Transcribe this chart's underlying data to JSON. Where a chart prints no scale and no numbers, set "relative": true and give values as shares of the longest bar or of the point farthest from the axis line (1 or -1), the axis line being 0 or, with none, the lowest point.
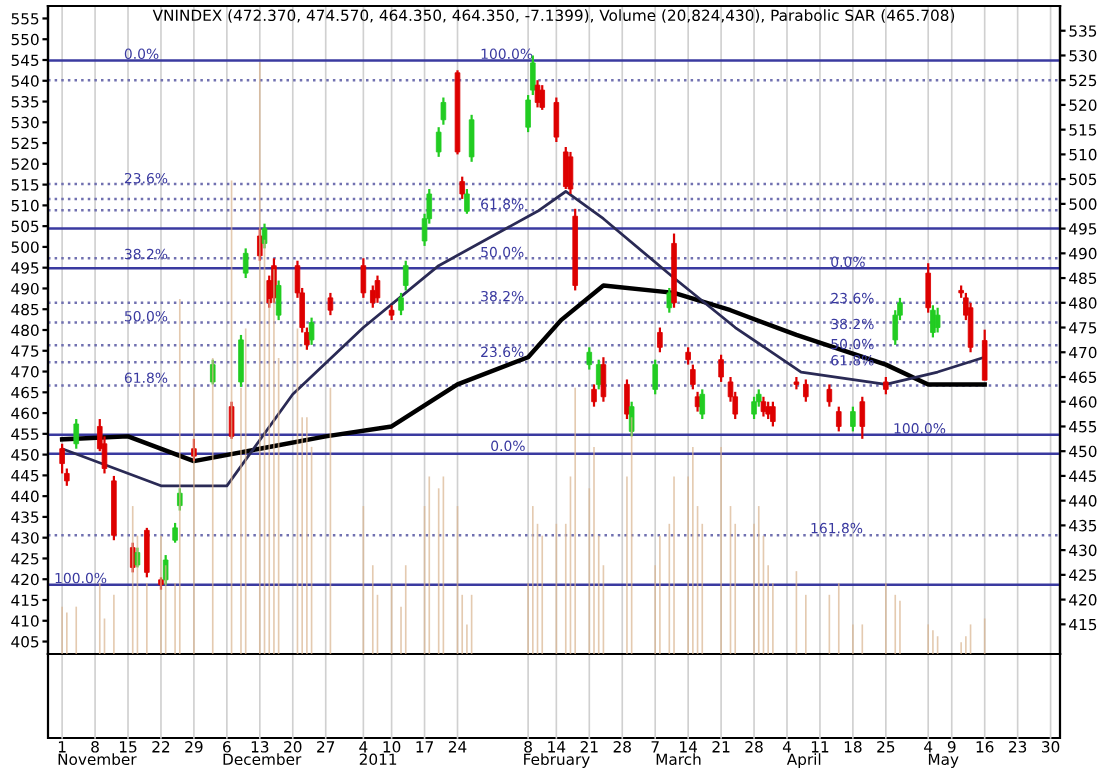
{
  "chart_data": [
    {
      "type": "candlestick",
      "title": "VNINDEX (472.370, 474.570, 464.350, 464.350, -7.1399), Volume (20,824,430), Parabolic SAR (465.708)",
      "xlim": [
        "2010-10-29",
        "2011-06-01"
      ],
      "ylim": [
        402,
        558
      ],
      "yticks": [
        405,
        410,
        415,
        420,
        425,
        430,
        435,
        440,
        445,
        450,
        455,
        460,
        465,
        470,
        475,
        480,
        485,
        490,
        495,
        500,
        505,
        510,
        515,
        520,
        525,
        530,
        535,
        540,
        545,
        550,
        555
      ],
      "y2lim": [
        409,
        540
      ],
      "y2ticks": [
        415,
        420,
        425,
        430,
        435,
        440,
        445,
        450,
        455,
        460,
        465,
        470,
        475,
        480,
        485,
        490,
        495,
        500,
        505,
        510,
        515,
        520,
        525,
        530,
        535
      ],
      "grid": "x",
      "series": [
        {
          "type": "candlestick",
          "axis": "y2",
          "x": [
            "2010-11-01",
            "2010-11-02",
            "2010-11-04",
            "2010-11-09",
            "2010-11-10",
            "2010-11-12",
            "2010-11-16",
            "2010-11-17",
            "2010-11-19",
            "2010-11-22",
            "2010-11-23",
            "2010-11-25",
            "2010-11-26",
            "2010-11-29",
            "2010-12-03",
            "2010-12-07",
            "2010-12-09",
            "2010-12-10",
            "2010-12-13",
            "2010-12-14",
            "2010-12-15",
            "2010-12-16",
            "2010-12-17",
            "2010-12-21",
            "2010-12-22",
            "2010-12-23",
            "2010-12-24",
            "2010-12-28",
            "2011-01-04",
            "2011-01-06",
            "2011-01-07",
            "2011-01-10",
            "2011-01-12",
            "2011-01-13",
            "2011-01-17",
            "2011-01-18",
            "2011-01-20",
            "2011-01-21",
            "2011-01-24",
            "2011-01-25",
            "2011-01-26",
            "2011-01-27",
            "2011-02-08",
            "2011-02-09",
            "2011-02-10",
            "2011-02-11",
            "2011-02-14",
            "2011-02-16",
            "2011-02-17",
            "2011-02-18",
            "2011-02-21",
            "2011-02-22",
            "2011-02-23",
            "2011-02-24",
            "2011-03-01",
            "2011-03-02",
            "2011-03-07",
            "2011-03-08",
            "2011-03-10",
            "2011-03-11",
            "2011-03-14",
            "2011-03-15",
            "2011-03-16",
            "2011-03-17",
            "2011-03-21",
            "2011-03-23",
            "2011-03-24",
            "2011-03-28",
            "2011-03-29",
            "2011-03-30",
            "2011-03-31",
            "2011-04-01",
            "2011-04-06",
            "2011-04-08",
            "2011-04-13",
            "2011-04-15",
            "2011-04-18",
            "2011-04-20",
            "2011-04-25",
            "2011-04-27",
            "2011-04-28",
            "2011-05-04",
            "2011-05-05",
            "2011-05-06",
            "2011-05-11",
            "2011-05-12",
            "2011-05-13",
            "2011-05-16"
          ],
          "ohlc": [
            [
              450.5,
              451.5,
              445.5,
              447.5
            ],
            [
              445.5,
              446.5,
              443,
              444
            ],
            [
              451.5,
              456.5,
              450.5,
              455.5
            ],
            [
              455,
              456.5,
              450,
              450.5
            ],
            [
              451.5,
              453,
              445.5,
              446.5
            ],
            [
              444,
              445,
              432,
              433
            ],
            [
              430.5,
              431.5,
              425.5,
              426.5
            ],
            [
              427,
              430.5,
              426.5,
              429.5
            ],
            [
              434,
              434.5,
              424.5,
              425.5
            ],
            [
              424,
              424.5,
              422,
              423
            ],
            [
              424,
              429,
              423,
              428
            ],
            [
              432,
              435.5,
              431.5,
              434.5
            ],
            [
              439,
              442.5,
              438,
              441.5
            ],
            [
              450.5,
              452.5,
              448,
              449
            ],
            [
              464,
              468.5,
              463.5,
              467.5
            ],
            [
              459,
              460,
              452.5,
              453
            ],
            [
              464,
              473.5,
              463,
              472.5
            ],
            [
              486,
              491,
              485,
              490
            ],
            [
              493.5,
              495,
              488.5,
              489.5
            ],
            [
              492,
              496,
              491,
              495
            ],
            [
              484.5,
              485.5,
              479,
              480
            ],
            [
              487.5,
              489,
              480,
              481
            ],
            [
              477.5,
              484.5,
              476.5,
              483.5
            ],
            [
              487.5,
              488.5,
              481,
              482
            ],
            [
              482,
              483,
              474,
              475
            ],
            [
              474,
              475,
              470.5,
              471.5
            ],
            [
              472.5,
              477,
              471.5,
              476
            ],
            [
              481,
              482,
              477.5,
              478.5
            ],
            [
              487.5,
              489,
              481,
              482
            ],
            [
              482.5,
              483.5,
              479,
              480
            ],
            [
              484.5,
              485.5,
              480,
              481
            ],
            [
              478.5,
              479.5,
              476.5,
              477.5
            ],
            [
              478.5,
              482,
              477.5,
              481
            ],
            [
              483.5,
              488.5,
              482.5,
              487.5
            ],
            [
              492.5,
              498,
              491.5,
              497
            ],
            [
              497,
              503,
              496,
              502
            ],
            [
              510.5,
              515.5,
              509.5,
              514.5
            ],
            [
              517,
              521.5,
              516,
              520.5
            ],
            [
              526.5,
              527,
              510,
              510.5
            ],
            [
              504.5,
              505.5,
              501,
              502
            ],
            [
              498.5,
              503,
              498,
              502
            ],
            [
              509.5,
              518,
              508.5,
              517
            ],
            [
              515.5,
              522,
              514.5,
              521
            ],
            [
              523,
              530,
              522,
              528.5
            ],
            [
              524,
              525,
              519.5,
              520.5
            ],
            [
              523,
              524,
              519,
              519.5
            ],
            [
              520.5,
              521.5,
              512.5,
              513.5
            ],
            [
              510.5,
              511.5,
              503,
              503.5
            ],
            [
              509.5,
              510.5,
              502,
              503
            ],
            [
              497.5,
              499,
              482.5,
              483.5
            ],
            [
              467.5,
              471,
              466.5,
              470
            ],
            [
              462.5,
              463.5,
              459,
              460
            ],
            [
              463.5,
              468.5,
              462.5,
              467.5
            ],
            [
              467.5,
              469,
              460,
              461
            ],
            [
              463.5,
              464.5,
              456.5,
              457.5
            ],
            [
              454,
              460,
              453,
              459
            ],
            [
              462.5,
              468.5,
              461.5,
              467.5
            ],
            [
              474,
              475,
              470,
              471
            ],
            [
              479,
              483,
              478,
              482
            ],
            [
              492,
              494,
              479,
              480
            ],
            [
              470,
              471,
              467.5,
              468.5
            ],
            [
              466.5,
              467.5,
              462.5,
              463.5
            ],
            [
              461,
              462,
              458,
              459
            ],
            [
              457.5,
              462.5,
              456.5,
              461.5
            ],
            [
              468.5,
              469.5,
              464,
              465
            ],
            [
              464,
              465,
              460,
              461
            ],
            [
              461,
              462,
              456.5,
              457.5
            ],
            [
              457.5,
              461,
              456.5,
              460
            ],
            [
              460,
              462.5,
              459,
              461.5
            ],
            [
              460,
              461,
              457,
              458
            ],
            [
              459,
              460,
              456.5,
              457.5
            ],
            [
              459,
              460,
              455,
              456
            ],
            [
              464,
              465,
              462.5,
              463.5
            ],
            [
              463.5,
              464.5,
              460,
              461
            ],
            [
              462.5,
              463.5,
              459,
              460
            ],
            [
              458,
              459,
              454,
              455
            ],
            [
              455,
              459,
              454,
              458
            ],
            [
              460,
              461,
              452.5,
              455
            ],
            [
              464,
              465,
              461.5,
              462.5
            ],
            [
              472.5,
              478.5,
              471.5,
              477.5
            ],
            [
              477.5,
              481,
              476.5,
              480
            ],
            [
              486,
              488,
              478,
              479
            ],
            [
              474,
              479.5,
              473,
              478.5
            ],
            [
              475,
              479,
              474,
              477.5
            ],
            [
              482.5,
              483.5,
              481,
              482
            ],
            [
              481,
              482,
              476.5,
              477.5
            ],
            [
              479,
              480,
              470,
              471
            ],
            [
              472.37,
              474.57,
              464.35,
              464.35
            ]
          ],
          "colors": [
            "#dd0000",
            "#dd0000",
            "#22cc22",
            "#dd0000",
            "#dd0000",
            "#dd0000",
            "#dd0000",
            "#22cc22",
            "#dd0000",
            "#dd0000",
            "#22cc22",
            "#22cc22",
            "#22cc22",
            "#dd0000",
            "#22cc22",
            "#dd0000",
            "#22cc22",
            "#22cc22",
            "#dd0000",
            "#22cc22",
            "#dd0000",
            "#dd0000",
            "#22cc22",
            "#dd0000",
            "#dd0000",
            "#dd0000",
            "#22cc22",
            "#dd0000",
            "#dd0000",
            "#dd0000",
            "#dd0000",
            "#dd0000",
            "#22cc22",
            "#22cc22",
            "#22cc22",
            "#22cc22",
            "#22cc22",
            "#22cc22",
            "#dd0000",
            "#dd0000",
            "#22cc22",
            "#22cc22",
            "#22cc22",
            "#22cc22",
            "#dd0000",
            "#dd0000",
            "#dd0000",
            "#dd0000",
            "#dd0000",
            "#dd0000",
            "#22cc22",
            "#dd0000",
            "#22cc22",
            "#dd0000",
            "#dd0000",
            "#22cc22",
            "#22cc22",
            "#dd0000",
            "#22cc22",
            "#dd0000",
            "#dd0000",
            "#dd0000",
            "#dd0000",
            "#22cc22",
            "#dd0000",
            "#dd0000",
            "#dd0000",
            "#22cc22",
            "#22cc22",
            "#dd0000",
            "#dd0000",
            "#dd0000",
            "#dd0000",
            "#dd0000",
            "#dd0000",
            "#dd0000",
            "#22cc22",
            "#dd0000",
            "#dd0000",
            "#22cc22",
            "#22cc22",
            "#dd0000",
            "#22cc22",
            "#22cc22",
            "#dd0000",
            "#dd0000",
            "#dd0000",
            "#dd0000"
          ]
        },
        {
          "type": "line",
          "axis": "y2",
          "color": "#000000",
          "x": [
            "2010-11-01",
            "2010-11-15",
            "2010-11-29",
            "2010-12-13",
            "2010-12-27",
            "2011-01-10",
            "2011-01-24",
            "2011-02-08",
            "2011-02-15",
            "2011-02-24",
            "2011-03-11",
            "2011-03-23",
            "2011-04-06",
            "2011-04-25",
            "2011-05-04",
            "2011-05-16"
          ],
          "values": [
            452.4,
            453,
            448,
            450.5,
            453,
            455,
            463.5,
            469,
            476.5,
            483.5,
            482,
            478.5,
            473.5,
            467.5,
            463.5,
            463.5
          ]
        },
        {
          "type": "line",
          "axis": "y2",
          "color": "#2a2a55",
          "x": [
            "2010-11-01",
            "2010-11-22",
            "2010-12-06",
            "2010-12-20",
            "2011-01-04",
            "2011-01-20",
            "2011-02-10",
            "2011-02-16",
            "2011-02-24",
            "2011-03-11",
            "2011-03-24",
            "2011-04-07",
            "2011-04-25",
            "2011-05-06",
            "2011-05-16"
          ],
          "values": [
            450.5,
            443,
            443,
            461.5,
            475,
            487.5,
            498.5,
            502.5,
            497,
            485,
            475,
            466,
            463.5,
            466,
            469
          ]
        }
      ],
      "ref_lines": [
        {
          "axis": "y2",
          "value": 529,
          "color": "#3a3aa0",
          "line_style": "solid"
        },
        {
          "axis": "y2",
          "value": 423,
          "color": "#3a3aa0",
          "line_style": "solid"
        },
        {
          "axis": "y2",
          "value": 449.5,
          "color": "#3a3aa0",
          "line_style": "solid"
        },
        {
          "axis": "y2",
          "value": 495,
          "color": "#3a3aa0",
          "line_style": "solid"
        },
        {
          "axis": "y2",
          "value": 487,
          "color": "#3a3aa0",
          "line_style": "solid"
        },
        {
          "axis": "y2",
          "value": 453.3,
          "color": "#3a3aa0",
          "line_style": "solid"
        },
        {
          "axis": "y2",
          "value": 525,
          "color": "#7070b0",
          "line_style": "dotted"
        },
        {
          "axis": "y2",
          "value": 504,
          "color": "#7070b0",
          "line_style": "dotted"
        },
        {
          "axis": "y2",
          "value": 501,
          "color": "#7070b0",
          "line_style": "dotted"
        },
        {
          "axis": "y2",
          "value": 498.7,
          "color": "#7070b0",
          "line_style": "dotted"
        },
        {
          "axis": "y2",
          "value": 489,
          "color": "#7070b0",
          "line_style": "dotted"
        },
        {
          "axis": "y2",
          "value": 480,
          "color": "#7070b0",
          "line_style": "dotted"
        },
        {
          "axis": "y2",
          "value": 476,
          "color": "#7070b0",
          "line_style": "dotted"
        },
        {
          "axis": "y2",
          "value": 471.4,
          "color": "#7070b0",
          "line_style": "dotted"
        },
        {
          "axis": "y2",
          "value": 468,
          "color": "#7070b0",
          "line_style": "dotted"
        },
        {
          "axis": "y2",
          "value": 463.3,
          "color": "#7070b0",
          "line_style": "dotted"
        },
        {
          "axis": "y2",
          "value": 433,
          "color": "#7070b0",
          "line_style": "dotted"
        }
      ],
      "xticks": [
        {
          "value": "2010-11-01",
          "label": "1"
        },
        {
          "value": "2010-11-08",
          "label": "8"
        },
        {
          "value": "2010-11-15",
          "label": "15"
        },
        {
          "value": "2010-11-22",
          "label": "22"
        },
        {
          "value": "2010-11-29",
          "label": "29"
        },
        {
          "value": "2010-12-06",
          "label": "6"
        },
        {
          "value": "2010-12-13",
          "label": "13"
        },
        {
          "value": "2010-12-20",
          "label": "20"
        },
        {
          "value": "2010-12-27",
          "label": "27"
        },
        {
          "value": "2011-01-04",
          "label": "4"
        },
        {
          "value": "2011-01-10",
          "label": "10"
        },
        {
          "value": "2011-01-17",
          "label": "17"
        },
        {
          "value": "2011-01-24",
          "label": "24"
        },
        {
          "value": "2011-02-08",
          "label": "8"
        },
        {
          "value": "2011-02-14",
          "label": "14"
        },
        {
          "value": "2011-02-21",
          "label": "21"
        },
        {
          "value": "2011-02-28",
          "label": "28"
        },
        {
          "value": "2011-03-07",
          "label": "7"
        },
        {
          "value": "2011-03-14",
          "label": "14"
        },
        {
          "value": "2011-03-21",
          "label": "21"
        },
        {
          "value": "2011-03-28",
          "label": "28"
        },
        {
          "value": "2011-04-04",
          "label": "4"
        },
        {
          "value": "2011-04-11",
          "label": "11"
        },
        {
          "value": "2011-04-18",
          "label": "18"
        },
        {
          "value": "2011-04-25",
          "label": "25"
        },
        {
          "value": "2011-05-04",
          "label": "4"
        },
        {
          "value": "2011-05-09",
          "label": "9"
        },
        {
          "value": "2011-05-16",
          "label": "16"
        },
        {
          "value": "2011-05-23",
          "label": "23"
        },
        {
          "value": "2011-05-30",
          "label": "30"
        }
      ],
      "annotations": [
        "0.0%",
        "23.6%",
        "38.2%",
        "50.0%",
        "61.8%",
        "100.0%",
        "100.0%",
        "61.8%",
        "50.0%",
        "38.2%",
        "23.6%",
        "0.0%",
        "0.0%",
        "23.6%",
        "38.2%",
        "50.0%",
        "61.8%",
        "100.0%",
        "161.8%",
        "November",
        "December",
        "2011",
        "February",
        "March",
        "April",
        "May"
      ]
    },
    {
      "type": "bar",
      "relative": true,
      "color": "#d8b48e",
      "xlim": [
        "2010-10-29",
        "2011-06-01"
      ],
      "tick_labels": false,
      "x": [
        "2010-11-01",
        "2010-11-02",
        "2010-11-04",
        "2010-11-09",
        "2010-11-10",
        "2010-11-12",
        "2010-11-16",
        "2010-11-17",
        "2010-11-19",
        "2010-11-22",
        "2010-11-23",
        "2010-11-25",
        "2010-11-26",
        "2010-11-29",
        "2010-12-03",
        "2010-12-07",
        "2010-12-09",
        "2010-12-10",
        "2010-12-13",
        "2010-12-14",
        "2010-12-15",
        "2010-12-16",
        "2010-12-17",
        "2010-12-21",
        "2010-12-22",
        "2010-12-23",
        "2010-12-24",
        "2010-12-28",
        "2011-01-04",
        "2011-01-06",
        "2011-01-07",
        "2011-01-10",
        "2011-01-12",
        "2011-01-13",
        "2011-01-17",
        "2011-01-18",
        "2011-01-20",
        "2011-01-21",
        "2011-01-24",
        "2011-01-25",
        "2011-01-26",
        "2011-01-27",
        "2011-02-08",
        "2011-02-09",
        "2011-02-10",
        "2011-02-11",
        "2011-02-14",
        "2011-02-16",
        "2011-02-17",
        "2011-02-18",
        "2011-02-21",
        "2011-02-22",
        "2011-02-23",
        "2011-02-24",
        "2011-03-01",
        "2011-03-02",
        "2011-03-07",
        "2011-03-08",
        "2011-03-10",
        "2011-03-11",
        "2011-03-14",
        "2011-03-15",
        "2011-03-16",
        "2011-03-17",
        "2011-03-21",
        "2011-03-23",
        "2011-03-24",
        "2011-03-28",
        "2011-03-29",
        "2011-03-30",
        "2011-03-31",
        "2011-04-01",
        "2011-04-06",
        "2011-04-08",
        "2011-04-13",
        "2011-04-15",
        "2011-04-18",
        "2011-04-20",
        "2011-04-25",
        "2011-04-27",
        "2011-04-28",
        "2011-05-04",
        "2011-05-05",
        "2011-05-06",
        "2011-05-11",
        "2011-05-12",
        "2011-05-13",
        "2011-05-16"
      ],
      "values": [
        0.08,
        0.07,
        0.08,
        0.12,
        0.06,
        0.1,
        0.25,
        0.2,
        0.12,
        0.2,
        0.15,
        0.12,
        0.6,
        0.45,
        0.5,
        0.8,
        0.45,
        0.55,
        1,
        0.7,
        0.6,
        0.65,
        0.5,
        0.55,
        0.4,
        0.4,
        0.35,
        0.45,
        0.25,
        0.15,
        0.1,
        0.12,
        0.08,
        0.15,
        0.25,
        0.3,
        0.28,
        0.3,
        0.25,
        0.1,
        0.05,
        0.1,
        0.12,
        0.25,
        0.22,
        0.2,
        0.22,
        0.22,
        0.3,
        0.45,
        0.28,
        0.35,
        0.2,
        0.15,
        0.3,
        0.4,
        0.15,
        0.2,
        0.22,
        0.3,
        0.3,
        0.35,
        0.25,
        0.22,
        0.35,
        0.25,
        0.22,
        0.22,
        0.25,
        0.2,
        0.15,
        0.12,
        0.14,
        0.1,
        0.1,
        0.12,
        0.05,
        0.05,
        0.12,
        0.1,
        0.09,
        0.05,
        0.04,
        0.03,
        0.02,
        0.03,
        0.05,
        0.06
      ]
    }
  ]
}
